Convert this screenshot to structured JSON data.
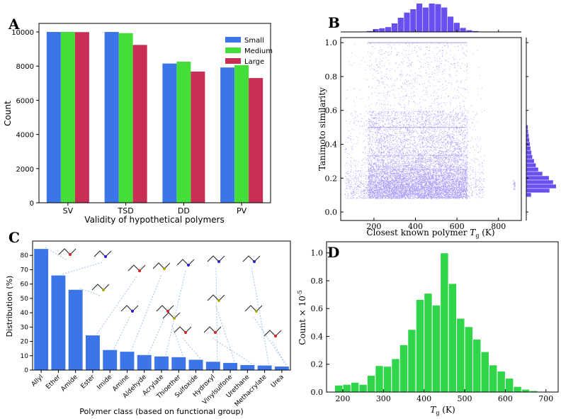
{
  "panels": {
    "A": "A",
    "B": "B",
    "C": "C",
    "D": "D"
  },
  "chart_data": [
    {
      "panel": "A",
      "type": "bar",
      "categories": [
        "SV",
        "TSD",
        "DD",
        "PV"
      ],
      "series": [
        {
          "name": "Small",
          "values": [
            10000,
            10000,
            8150,
            7920
          ],
          "color": "#3b75e8"
        },
        {
          "name": "Medium",
          "values": [
            10000,
            9930,
            8260,
            8060
          ],
          "color": "#44dd3a"
        },
        {
          "name": "Large",
          "values": [
            9990,
            9240,
            7680,
            7300
          ],
          "color": "#c82e54"
        }
      ],
      "xlabel": "Validity of hypothetical polymers",
      "ylabel": "Count",
      "ylim": [
        0,
        10500
      ],
      "yticks": [
        0,
        2000,
        4000,
        6000,
        8000,
        10000
      ],
      "legend_position": "top-right"
    },
    {
      "panel": "B",
      "type": "scatter",
      "xlabel": "Closest known polymer T_g (K)",
      "xlabel_parts": {
        "pre": "Closest known polymer ",
        "sym": "T",
        "sub": "g",
        "post": " (K)"
      },
      "ylabel": "Tanimoto similarity",
      "xlim": [
        40,
        910
      ],
      "ylim": [
        -0.05,
        1.03
      ],
      "xticks": [
        200,
        400,
        600,
        800
      ],
      "yticks": [
        0.0,
        0.2,
        0.4,
        0.6,
        0.8,
        1.0
      ],
      "ytick_labels": [
        "0.0",
        "0.2",
        "0.4",
        "0.6",
        "0.8",
        "1.0"
      ],
      "point_color": "#6a4ff0",
      "top_histogram": {
        "bin_centers": [
          180,
          210,
          240,
          270,
          300,
          330,
          360,
          390,
          420,
          450,
          480,
          510,
          540,
          570,
          600,
          630,
          660,
          690
        ],
        "heights": [
          0.03,
          0.1,
          0.13,
          0.17,
          0.3,
          0.5,
          0.68,
          0.8,
          1.0,
          0.86,
          1.0,
          0.98,
          0.86,
          0.54,
          0.32,
          0.14,
          0.06,
          0.03
        ]
      },
      "right_histogram": {
        "bin_centers": [
          0.1,
          0.125,
          0.15,
          0.175,
          0.2,
          0.225,
          0.25,
          0.275,
          0.3,
          0.325,
          0.35,
          0.375,
          0.4,
          0.425,
          0.45,
          0.475,
          0.5
        ],
        "heights": [
          0.16,
          0.78,
          1.0,
          0.9,
          0.76,
          0.54,
          0.4,
          0.32,
          0.26,
          0.2,
          0.17,
          0.14,
          0.12,
          0.1,
          0.08,
          0.06,
          0.05
        ]
      }
    },
    {
      "panel": "C",
      "type": "bar",
      "categories": [
        "Allyl",
        "Ether",
        "Amide",
        "Ester",
        "Imide",
        "Amine",
        "Aldehyde",
        "Acrylate",
        "Thioether",
        "Sulfoxide",
        "Hydroxyl",
        "Vinylsulfone",
        "Urethane",
        "Methacrylate",
        "Urea"
      ],
      "values": [
        84.5,
        66,
        56,
        24.2,
        14,
        12.8,
        10.5,
        9.5,
        9,
        7.2,
        5.8,
        5,
        3.5,
        3.2,
        2.5
      ],
      "color": "#3b75e8",
      "xlabel": "Polymer class (based on functional group)",
      "ylabel": "Distribution (%)",
      "ylim": [
        0,
        90
      ],
      "yticks": [
        0,
        10,
        20,
        30,
        40,
        50,
        60,
        70,
        80
      ]
    },
    {
      "panel": "D",
      "type": "bar",
      "bin_edges": [
        180,
        200,
        220,
        240,
        260,
        280,
        300,
        320,
        340,
        360,
        380,
        400,
        420,
        440,
        460,
        480,
        500,
        520,
        540,
        560,
        580,
        600,
        620,
        640,
        660,
        680,
        700
      ],
      "values": [
        0.05,
        0.055,
        0.07,
        0.055,
        0.12,
        0.19,
        0.185,
        0.24,
        0.34,
        0.45,
        0.665,
        0.71,
        0.625,
        1.0,
        0.78,
        0.53,
        0.47,
        0.38,
        0.29,
        0.195,
        0.15,
        0.1,
        0.04,
        0.02,
        0.01,
        0.0
      ],
      "color": "#2fd64a",
      "xlabel": "T_g (K)",
      "xlabel_parts": {
        "sym": "T",
        "sub": "g",
        "post": " (K)"
      },
      "ylabel": "Count × 10^-5",
      "ylabel_parts": {
        "pre": "Count × 10",
        "sup": "-5"
      },
      "xlim": [
        160,
        730
      ],
      "ylim": [
        0,
        1.08
      ],
      "xticks": [
        200,
        300,
        400,
        500,
        600,
        700
      ],
      "yticks": [
        0.0,
        0.2,
        0.4,
        0.6,
        0.8,
        1.0
      ],
      "ytick_labels": [
        "0.0",
        "0.2",
        "0.4",
        "0.6",
        "0.8",
        "1.0"
      ]
    }
  ]
}
